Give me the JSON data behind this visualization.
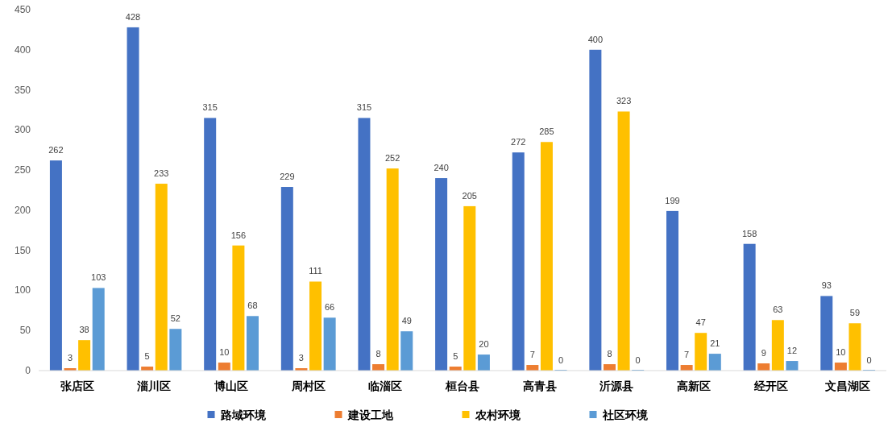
{
  "chart_data": {
    "type": "bar",
    "categories": [
      "张店区",
      "淄川区",
      "博山区",
      "周村区",
      "临淄区",
      "桓台县",
      "高青县",
      "沂源县",
      "高新区",
      "经开区",
      "文昌湖区"
    ],
    "series": [
      {
        "name": "路域环境",
        "color": "#4472c4",
        "values": [
          262,
          428,
          315,
          229,
          315,
          240,
          272,
          400,
          199,
          158,
          93
        ]
      },
      {
        "name": "建设工地",
        "color": "#ed7d31",
        "values": [
          3,
          5,
          10,
          3,
          8,
          5,
          7,
          8,
          7,
          9,
          10
        ]
      },
      {
        "name": "农村环境",
        "color": "#ffc000",
        "values": [
          38,
          233,
          156,
          111,
          252,
          205,
          285,
          323,
          47,
          63,
          59
        ]
      },
      {
        "name": "社区环境",
        "color": "#5b9bd5",
        "values": [
          103,
          52,
          68,
          66,
          49,
          20,
          0,
          0,
          21,
          12,
          0
        ]
      }
    ],
    "ylim": [
      0,
      450
    ],
    "yticks": [
      0,
      50,
      100,
      150,
      200,
      250,
      300,
      350,
      400,
      450
    ],
    "data_labels": true,
    "legend": "bottom"
  }
}
